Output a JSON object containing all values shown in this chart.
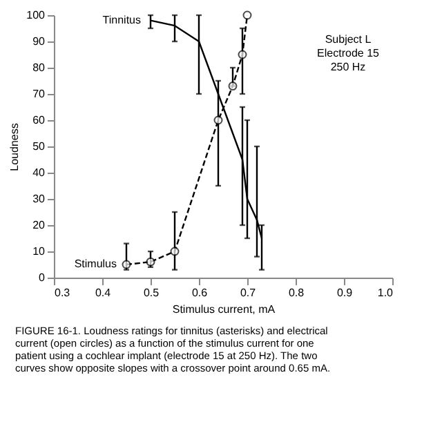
{
  "chart_data": {
    "type": "line",
    "xlabel": "Stimulus current, mA",
    "ylabel": "Loudness",
    "xlim": [
      0.3,
      1.0
    ],
    "xticks": [
      {
        "value": 0.3,
        "label": "0.3"
      },
      {
        "value": 0.4,
        "label": "0.4"
      },
      {
        "value": 0.5,
        "label": "0.5"
      },
      {
        "value": 0.6,
        "label": "0.6"
      },
      {
        "value": 0.7,
        "label": "0.7"
      },
      {
        "value": 0.8,
        "label": "0.8"
      },
      {
        "value": 0.9,
        "label": "0.9"
      },
      {
        "value": 1.0,
        "label": "1.0"
      }
    ],
    "ylim": [
      0,
      100
    ],
    "yticks": [
      0,
      10,
      20,
      30,
      40,
      50,
      60,
      70,
      80,
      90,
      100
    ],
    "grid": false,
    "series": [
      {
        "name": "Tinnitus",
        "color": "#000000",
        "line_style": "solid",
        "marker": "none",
        "x": [
          0.5,
          0.55,
          0.6,
          0.69,
          0.7,
          0.72,
          0.73
        ],
        "values": [
          98,
          96,
          90,
          45,
          30,
          22,
          15
        ],
        "errors": [
          [
            95,
            100
          ],
          [
            90,
            100
          ],
          [
            70,
            100
          ],
          [
            20,
            65
          ],
          [
            15,
            60
          ],
          [
            8,
            50
          ],
          [
            3,
            20
          ]
        ]
      },
      {
        "name": "Stimulus",
        "color": "#000000",
        "line_style": "dashed",
        "marker": "circle",
        "x": [
          0.45,
          0.5,
          0.55,
          0.64,
          0.67,
          0.69,
          0.7
        ],
        "values": [
          5,
          6,
          10,
          60,
          73,
          85,
          100
        ],
        "errors": [
          [
            3,
            13
          ],
          [
            4,
            10
          ],
          [
            3,
            25
          ],
          [
            35,
            75
          ],
          [
            73,
            80
          ],
          [
            70,
            95
          ],
          null
        ]
      }
    ],
    "annotations": [
      "Subject L\nElectrode 15\n250 Hz",
      "FIGURE 16-1. Loudness ratings for tinnitus (asterisks) and electrical current (open circles) as a function of the stimulus current for one patient using a cochlear implant (electrode 15 at 250 Hz). The two curves show opposite slopes with a crossover point around 0.65 mA."
    ]
  }
}
